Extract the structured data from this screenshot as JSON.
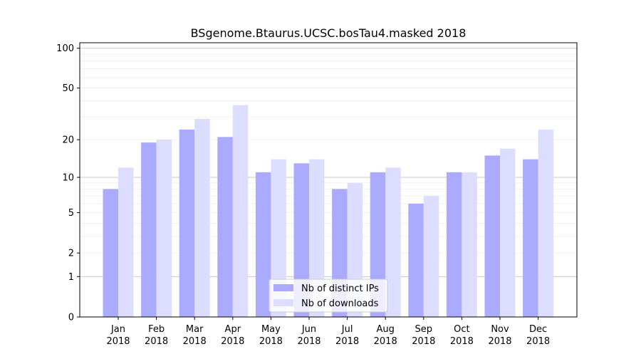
{
  "chart_data": {
    "type": "bar",
    "title": "BSgenome.Btaurus.UCSC.bosTau4.masked 2018",
    "xlabel": "",
    "ylabel": "",
    "y_scale": "log1p",
    "ylim": [
      0,
      110
    ],
    "y_ticks": [
      0,
      1,
      2,
      5,
      10,
      20,
      50,
      100
    ],
    "y_tick_labels": [
      "0",
      "1",
      "2",
      "5",
      "10",
      "20",
      "50",
      "100"
    ],
    "grid": "horizontal",
    "legend_position": "bottom-center",
    "categories": [
      "Jan 2018",
      "Feb 2018",
      "Mar 2018",
      "Apr 2018",
      "May 2018",
      "Jun 2018",
      "Jul 2018",
      "Aug 2018",
      "Sep 2018",
      "Oct 2018",
      "Nov 2018",
      "Dec 2018"
    ],
    "category_lines": [
      [
        "Jan",
        "2018"
      ],
      [
        "Feb",
        "2018"
      ],
      [
        "Mar",
        "2018"
      ],
      [
        "Apr",
        "2018"
      ],
      [
        "May",
        "2018"
      ],
      [
        "Jun",
        "2018"
      ],
      [
        "Jul",
        "2018"
      ],
      [
        "Aug",
        "2018"
      ],
      [
        "Sep",
        "2018"
      ],
      [
        "Oct",
        "2018"
      ],
      [
        "Nov",
        "2018"
      ],
      [
        "Dec",
        "2018"
      ]
    ],
    "series": [
      {
        "name": "Nb of distinct IPs",
        "color": "#aaaaff",
        "values": [
          8,
          19,
          24,
          21,
          11,
          13,
          8,
          11,
          6,
          11,
          15,
          14
        ]
      },
      {
        "name": "Nb of downloads",
        "color": "#ddddff",
        "values": [
          12,
          20,
          29,
          37,
          14,
          14,
          9,
          12,
          7,
          11,
          17,
          24
        ]
      }
    ]
  }
}
